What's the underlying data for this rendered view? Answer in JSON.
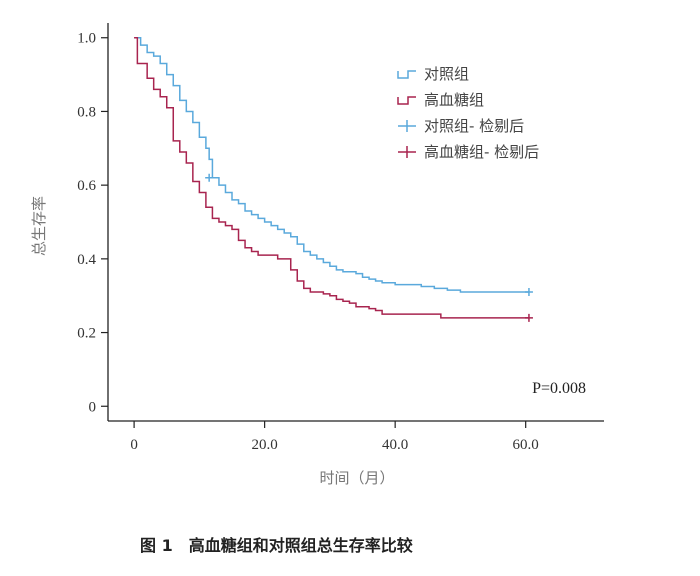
{
  "chart_data": {
    "type": "line",
    "title": "",
    "xlabel": "时间（月）",
    "ylabel": "总生存率",
    "xlim": [
      -4,
      72
    ],
    "ylim": [
      -0.04,
      1.04
    ],
    "xticks": [
      0,
      20,
      40,
      60
    ],
    "xtick_labels": [
      "0",
      "20.0",
      "40.0",
      "60.0"
    ],
    "yticks": [
      0,
      0.2,
      0.4,
      0.6,
      0.8,
      1.0
    ],
    "ytick_labels": [
      "0",
      "0.2",
      "0.4",
      "0.6",
      "0.8",
      "1.0"
    ],
    "annotation": "P=0.008",
    "legend_position": "top-right",
    "legend": [
      "对照组",
      "高血糖组",
      "对照组- 检剔后",
      "高血糖组- 检剔后"
    ],
    "series": [
      {
        "name": "对照组",
        "color": "#5aa9dc",
        "censor_marker": "对照组- 检剔后",
        "steps": [
          [
            0,
            1.0
          ],
          [
            1,
            0.98
          ],
          [
            2,
            0.96
          ],
          [
            3,
            0.95
          ],
          [
            4,
            0.93
          ],
          [
            5,
            0.9
          ],
          [
            6,
            0.87
          ],
          [
            7,
            0.83
          ],
          [
            8,
            0.8
          ],
          [
            9,
            0.77
          ],
          [
            10,
            0.73
          ],
          [
            11,
            0.7
          ],
          [
            11.5,
            0.67
          ],
          [
            12,
            0.62
          ],
          [
            13,
            0.6
          ],
          [
            14,
            0.58
          ],
          [
            15,
            0.56
          ],
          [
            16,
            0.55
          ],
          [
            17,
            0.53
          ],
          [
            18,
            0.52
          ],
          [
            19,
            0.51
          ],
          [
            20,
            0.5
          ],
          [
            21,
            0.49
          ],
          [
            22,
            0.48
          ],
          [
            23,
            0.47
          ],
          [
            24,
            0.46
          ],
          [
            25,
            0.44
          ],
          [
            26,
            0.42
          ],
          [
            27,
            0.41
          ],
          [
            28,
            0.4
          ],
          [
            29,
            0.39
          ],
          [
            30,
            0.38
          ],
          [
            31,
            0.37
          ],
          [
            32,
            0.365
          ],
          [
            34,
            0.36
          ],
          [
            35,
            0.35
          ],
          [
            36,
            0.345
          ],
          [
            37,
            0.34
          ],
          [
            38,
            0.335
          ],
          [
            40,
            0.33
          ],
          [
            42,
            0.33
          ],
          [
            44,
            0.325
          ],
          [
            46,
            0.32
          ],
          [
            48,
            0.315
          ],
          [
            50,
            0.31
          ],
          [
            60,
            0.31
          ]
        ],
        "end_x": 60.5,
        "censor": [
          [
            11.5,
            0.62
          ],
          [
            60.5,
            0.31
          ]
        ]
      },
      {
        "name": "高血糖组",
        "color": "#a8244f",
        "censor_marker": "高血糖组- 检剔后",
        "steps": [
          [
            0,
            1.0
          ],
          [
            0.5,
            0.93
          ],
          [
            2,
            0.89
          ],
          [
            3,
            0.86
          ],
          [
            4,
            0.84
          ],
          [
            5,
            0.81
          ],
          [
            6,
            0.72
          ],
          [
            7,
            0.69
          ],
          [
            8,
            0.66
          ],
          [
            9,
            0.61
          ],
          [
            10,
            0.58
          ],
          [
            11,
            0.54
          ],
          [
            12,
            0.51
          ],
          [
            13,
            0.5
          ],
          [
            14,
            0.49
          ],
          [
            15,
            0.48
          ],
          [
            16,
            0.45
          ],
          [
            17,
            0.43
          ],
          [
            18,
            0.42
          ],
          [
            19,
            0.41
          ],
          [
            22,
            0.4
          ],
          [
            24,
            0.37
          ],
          [
            25,
            0.34
          ],
          [
            26,
            0.32
          ],
          [
            27,
            0.31
          ],
          [
            29,
            0.305
          ],
          [
            30,
            0.3
          ],
          [
            31,
            0.29
          ],
          [
            32,
            0.285
          ],
          [
            33,
            0.28
          ],
          [
            34,
            0.27
          ],
          [
            36,
            0.265
          ],
          [
            37,
            0.26
          ],
          [
            38,
            0.25
          ],
          [
            40,
            0.25
          ],
          [
            47,
            0.24
          ],
          [
            60,
            0.24
          ]
        ],
        "end_x": 60.5,
        "censor": [
          [
            60.5,
            0.24
          ]
        ]
      }
    ]
  },
  "caption": {
    "figure_number": "图 1",
    "text": "高血糖组和对照组总生存率比较"
  }
}
